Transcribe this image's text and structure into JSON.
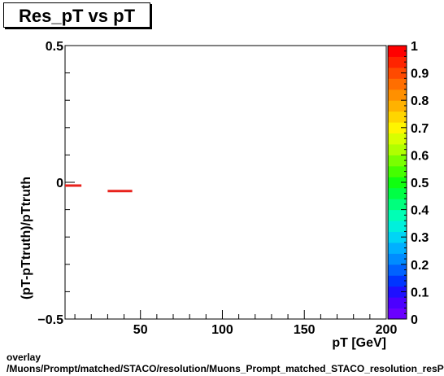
{
  "title": "Res_pT vs pT",
  "footer": {
    "line1": "overlay",
    "line2": "/Muons/Prompt/matched/STACO/resolution/Muons_Prompt_matched_STACO_resolution_resPt_vs_pt"
  },
  "chart_data": {
    "type": "scatter",
    "title": "Res_pT vs pT",
    "xlabel": "pT [GeV]",
    "ylabel": "(pT-pTtruth)/pTtruth",
    "xlim": [
      4,
      200
    ],
    "ylim": [
      -0.5,
      0.5
    ],
    "x_ticks": [
      50,
      100,
      150,
      200
    ],
    "y_ticks": [
      -0.5,
      0,
      0.5
    ],
    "x_tick_labels": [
      "50",
      "100",
      "150",
      "200"
    ],
    "y_tick_labels": [
      "−0.5",
      "0",
      "0.5"
    ],
    "series": [
      {
        "color": "#e8221c",
        "points": [
          {
            "x_low": 4,
            "x_high": 14,
            "y": -0.012
          },
          {
            "x_low": 30,
            "x_high": 45,
            "y": -0.032
          }
        ]
      }
    ],
    "colorbar": {
      "min": 0,
      "max": 1,
      "tick_labels": [
        "0",
        "0.1",
        "0.2",
        "0.3",
        "0.4",
        "0.5",
        "0.6",
        "0.7",
        "0.8",
        "0.9",
        "1"
      ],
      "colors": [
        "#6a00ff",
        "#4b00ff",
        "#1e10ff",
        "#0035ff",
        "#0062ff",
        "#008cff",
        "#00b0ff",
        "#00d5f5",
        "#00f0dc",
        "#00ffb5",
        "#00ff7d",
        "#00ff45",
        "#10ff10",
        "#45ff00",
        "#7aff00",
        "#b0ff00",
        "#d8ff00",
        "#fff500",
        "#ffd500",
        "#ffb200",
        "#ff9000",
        "#ff6e00",
        "#ff4a00",
        "#ff2400",
        "#ff0000"
      ]
    },
    "grid": false,
    "legend": "none"
  }
}
